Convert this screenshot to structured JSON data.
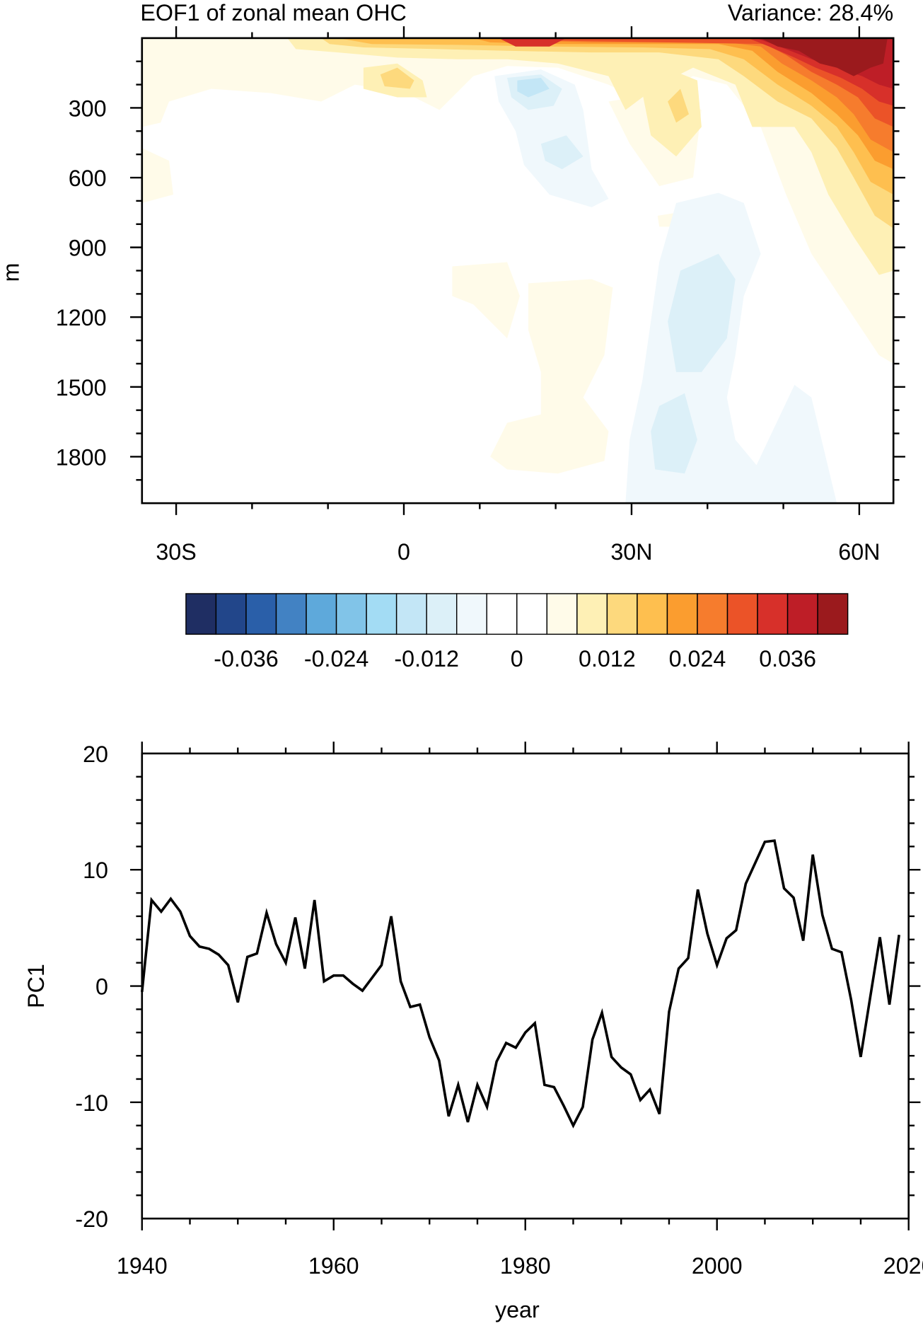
{
  "chart_data": [
    {
      "type": "heatmap",
      "title": "EOF1 of zonal mean OHC",
      "right_title": "Variance: 28.4%",
      "xlabel": "",
      "ylabel": "m",
      "x_ticks": [
        {
          "value": -30,
          "label": "30S"
        },
        {
          "value": 0,
          "label": "0"
        },
        {
          "value": 30,
          "label": "30N"
        },
        {
          "value": 60,
          "label": "60N"
        }
      ],
      "xlim": [
        -34.5,
        64.5
      ],
      "y_ticks": [
        300,
        600,
        900,
        1200,
        1500,
        1800
      ],
      "ylim": [
        2000,
        0
      ],
      "colorbar": {
        "levels_min": -0.04,
        "levels_max": 0.04,
        "level_step": 0.004,
        "labels": [
          "-0.036",
          "-0.024",
          "-0.012",
          "0",
          "0.012",
          "0.024",
          "0.036"
        ],
        "label_values": [
          -0.036,
          -0.024,
          -0.012,
          0,
          0.012,
          0.024,
          0.036
        ],
        "colors": [
          "#1f2e63",
          "#22468a",
          "#2a5fa9",
          "#4282c3",
          "#5ea9db",
          "#81c4e8",
          "#a3dcf4",
          "#c3e6f6",
          "#dcf0f8",
          "#f0f8fc",
          "#ffffff",
          "#ffffff",
          "#fffbe9",
          "#fef0b5",
          "#fdd97d",
          "#febf4f",
          "#fb9d2f",
          "#f67c2d",
          "#eb5328",
          "#d7302a",
          "#be1e27",
          "#9b1a1d"
        ]
      }
    },
    {
      "type": "line",
      "title": "",
      "xlabel": "year",
      "ylabel": "PC1",
      "xlim": [
        1940,
        2020
      ],
      "ylim": [
        -20,
        20
      ],
      "x_ticks": [
        1940,
        1960,
        1980,
        2000,
        2020
      ],
      "y_ticks": [
        20,
        10,
        0,
        -10,
        -20
      ],
      "grid": false,
      "series": [
        {
          "name": "PC1",
          "color": "#000000",
          "x": [
            1940,
            1941,
            1942,
            1943,
            1944,
            1945,
            1946,
            1947,
            1948,
            1949,
            1950,
            1951,
            1952,
            1953,
            1954,
            1955,
            1956,
            1957,
            1958,
            1959,
            1960,
            1961,
            1962,
            1963,
            1964,
            1965,
            1966,
            1967,
            1968,
            1969,
            1970,
            1971,
            1972,
            1973,
            1974,
            1975,
            1976,
            1977,
            1978,
            1979,
            1980,
            1981,
            1982,
            1983,
            1984,
            1985,
            1986,
            1987,
            1988,
            1989,
            1990,
            1991,
            1992,
            1993,
            1994,
            1995,
            1996,
            1997,
            1998,
            1999,
            2000,
            2001,
            2002,
            2003,
            2004,
            2005,
            2006,
            2007,
            2008,
            2009,
            2010,
            2011,
            2012,
            2013,
            2014,
            2015,
            2016,
            2017,
            2018,
            2019
          ],
          "values": [
            -0.5,
            7.4,
            6.4,
            7.5,
            6.4,
            4.3,
            3.4,
            3.2,
            2.7,
            1.8,
            -1.4,
            2.5,
            2.8,
            6.3,
            3.6,
            2.0,
            5.9,
            1.5,
            7.4,
            0.4,
            0.9,
            0.9,
            0.2,
            -0.4,
            0.7,
            1.8,
            6.0,
            0.4,
            -1.8,
            -1.6,
            -4.4,
            -6.4,
            -11.2,
            -8.5,
            -11.7,
            -8.5,
            -10.4,
            -6.5,
            -4.9,
            -5.3,
            -4.0,
            -3.2,
            -8.5,
            -8.7,
            -10.3,
            -12.0,
            -10.4,
            -4.6,
            -2.3,
            -6.1,
            -7.0,
            -7.6,
            -9.8,
            -8.9,
            -11.0,
            -2.2,
            1.5,
            2.4,
            8.3,
            4.5,
            1.8,
            4.1,
            4.8,
            8.8,
            10.6,
            12.4,
            12.5,
            8.4,
            7.6,
            3.9,
            11.3,
            6.1,
            3.2,
            2.9,
            -1.2,
            -6.1,
            -0.9,
            4.2,
            -1.6,
            4.4
          ]
        }
      ]
    }
  ]
}
